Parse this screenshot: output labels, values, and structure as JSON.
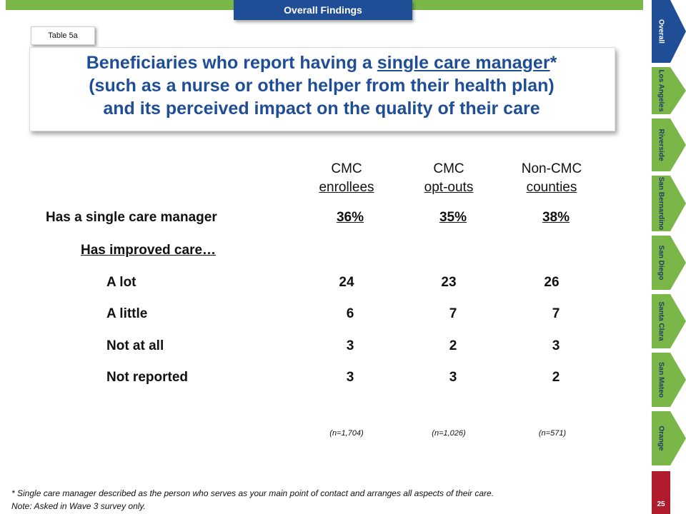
{
  "header": {
    "section_tab": "Overall Findings",
    "table_tag": "Table 5a"
  },
  "title": {
    "line1_pre": "Beneficiaries who report having a ",
    "line1_underlined": "single care manager",
    "line1_post": "*",
    "line2": "(such as a nurse or other helper from their health plan)",
    "line3": "and its perceived impact on the quality of their care"
  },
  "columns": [
    {
      "line1": "CMC",
      "line2": "enrollees",
      "n": "(n=1,704)"
    },
    {
      "line1": "CMC",
      "line2": "opt-outs",
      "n": "(n=1,026)"
    },
    {
      "line1": "Non-CMC",
      "line2": "counties",
      "n": "(n=571)"
    }
  ],
  "rows": [
    {
      "label": "Has a single care manager",
      "values": [
        "36%",
        "35%",
        "38%"
      ]
    },
    {
      "label": "Has improved care…",
      "values": [
        "",
        "",
        ""
      ]
    },
    {
      "label": "A lot",
      "values": [
        "24",
        "23",
        "26"
      ]
    },
    {
      "label": "A little",
      "values": [
        "6",
        "7",
        "7"
      ]
    },
    {
      "label": "Not at all",
      "values": [
        "3",
        "2",
        "3"
      ]
    },
    {
      "label": "Not reported",
      "values": [
        "3",
        "3",
        "2"
      ]
    }
  ],
  "footnote": {
    "line1": "* Single care manager described as the person who serves as your main point of contact and arranges all aspects of their care.",
    "line2": "Note: Asked in Wave 3 survey only."
  },
  "sidebar": {
    "tabs": [
      {
        "label": "Overall",
        "active": true
      },
      {
        "label": "Los Angeles"
      },
      {
        "label": "Riverside"
      },
      {
        "label": "San Bernardino"
      },
      {
        "label": "San Diego"
      },
      {
        "label": "Santa Clara"
      },
      {
        "label": "San Mateo"
      },
      {
        "label": "Orange"
      }
    ],
    "page_number": "25"
  },
  "colors": {
    "brand_blue": "#1f4e97",
    "green": "#7ab648",
    "red": "#b01c2e"
  }
}
